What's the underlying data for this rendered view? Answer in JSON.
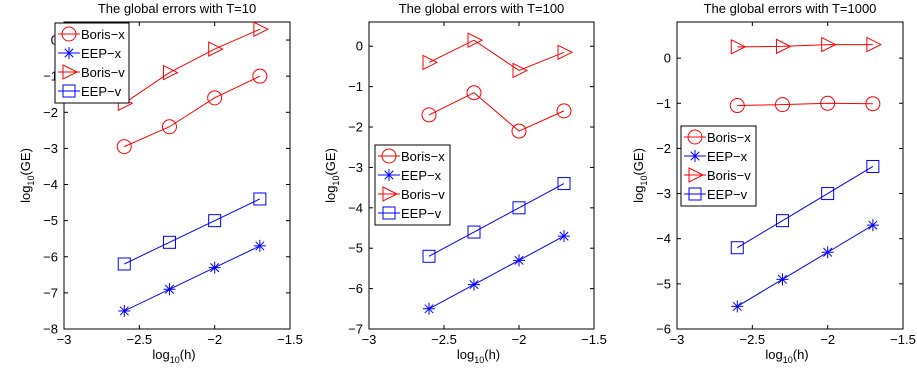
{
  "chart_data": [
    {
      "type": "line",
      "title": "The global errors with T=10",
      "xlabel": "log",
      "xlabel_sub": "10",
      "xlabel_tail": "(h)",
      "ylabel": "log",
      "ylabel_sub": "10",
      "ylabel_tail": "(GE)",
      "xlim": [
        -3,
        -1.5
      ],
      "ylim": [
        -8,
        0.5
      ],
      "xticks": [
        -3,
        -2.5,
        -2,
        -1.5
      ],
      "xtick_labels": [
        "−3",
        "−2.5",
        "−2",
        "−1.5"
      ],
      "yticks": [
        -8,
        -7,
        -6,
        -5,
        -4,
        -3,
        -2,
        -1,
        0
      ],
      "ytick_labels": [
        "−8",
        "−7",
        "−6",
        "−5",
        "−4",
        "−3",
        "−2",
        "−1",
        "0"
      ],
      "x": [
        -2.6,
        -2.3,
        -2.0,
        -1.7
      ],
      "series": [
        {
          "name": "Boris−x",
          "color": "#ff0000",
          "marker": "circle",
          "values": [
            -2.95,
            -2.4,
            -1.6,
            -1.0
          ]
        },
        {
          "name": "EEP−x",
          "color": "#0000ff",
          "marker": "star",
          "values": [
            -7.5,
            -6.9,
            -6.3,
            -5.7
          ]
        },
        {
          "name": "Boris−v",
          "color": "#ff0000",
          "marker": "triangle-right",
          "values": [
            -1.75,
            -0.9,
            -0.25,
            0.3
          ]
        },
        {
          "name": "EEP−v",
          "color": "#0000ff",
          "marker": "square",
          "values": [
            -6.2,
            -5.6,
            -5.0,
            -4.4
          ]
        }
      ],
      "legend_position": "top-left"
    },
    {
      "type": "line",
      "title": "The global errors with T=100",
      "xlabel": "log",
      "xlabel_sub": "10",
      "xlabel_tail": "(h)",
      "ylabel": "log",
      "ylabel_sub": "10",
      "ylabel_tail": "(GE)",
      "xlim": [
        -3,
        -1.5
      ],
      "ylim": [
        -7,
        0.6
      ],
      "xticks": [
        -3,
        -2.5,
        -2,
        -1.5
      ],
      "xtick_labels": [
        "−3",
        "−2.5",
        "−2",
        "−1.5"
      ],
      "yticks": [
        -7,
        -6,
        -5,
        -4,
        -3,
        -2,
        -1,
        0
      ],
      "ytick_labels": [
        "−7",
        "−6",
        "−5",
        "−4",
        "−3",
        "−2",
        "−1",
        "0"
      ],
      "x": [
        -2.6,
        -2.3,
        -2.0,
        -1.7
      ],
      "series": [
        {
          "name": "Boris−x",
          "color": "#ff0000",
          "marker": "circle",
          "values": [
            -1.7,
            -1.15,
            -2.1,
            -1.6
          ]
        },
        {
          "name": "EEP−x",
          "color": "#0000ff",
          "marker": "star",
          "values": [
            -6.5,
            -5.9,
            -5.3,
            -4.7
          ]
        },
        {
          "name": "Boris−v",
          "color": "#ff0000",
          "marker": "triangle-right",
          "values": [
            -0.4,
            0.15,
            -0.6,
            -0.15
          ]
        },
        {
          "name": "EEP−v",
          "color": "#0000ff",
          "marker": "square",
          "values": [
            -5.2,
            -4.6,
            -4.0,
            -3.4
          ]
        }
      ],
      "legend_position": "left"
    },
    {
      "type": "line",
      "title": "The global errors with T=1000",
      "xlabel": "log",
      "xlabel_sub": "10",
      "xlabel_tail": "(h)",
      "ylabel": "log",
      "ylabel_sub": "10",
      "ylabel_tail": "(GE)",
      "xlim": [
        -3,
        -1.5
      ],
      "ylim": [
        -6,
        0.8
      ],
      "xticks": [
        -3,
        -2.5,
        -2,
        -1.5
      ],
      "xtick_labels": [
        "−3",
        "−2.5",
        "−2",
        "−1.5"
      ],
      "yticks": [
        -6,
        -5,
        -4,
        -3,
        -2,
        -1,
        0
      ],
      "ytick_labels": [
        "−6",
        "−5",
        "−4",
        "−3",
        "−2",
        "−1",
        "0"
      ],
      "x": [
        -2.6,
        -2.3,
        -2.0,
        -1.7
      ],
      "series": [
        {
          "name": "Boris−x",
          "color": "#ff0000",
          "marker": "circle",
          "values": [
            -1.05,
            -1.03,
            -1.0,
            -1.01
          ]
        },
        {
          "name": "EEP−x",
          "color": "#0000ff",
          "marker": "star",
          "values": [
            -5.5,
            -4.9,
            -4.3,
            -3.7
          ]
        },
        {
          "name": "Boris−v",
          "color": "#ff0000",
          "marker": "triangle-right",
          "values": [
            0.25,
            0.26,
            0.3,
            0.3
          ]
        },
        {
          "name": "EEP−v",
          "color": "#0000ff",
          "marker": "square",
          "values": [
            -4.2,
            -3.6,
            -3.0,
            -2.4
          ]
        }
      ],
      "legend_position": "left"
    }
  ]
}
